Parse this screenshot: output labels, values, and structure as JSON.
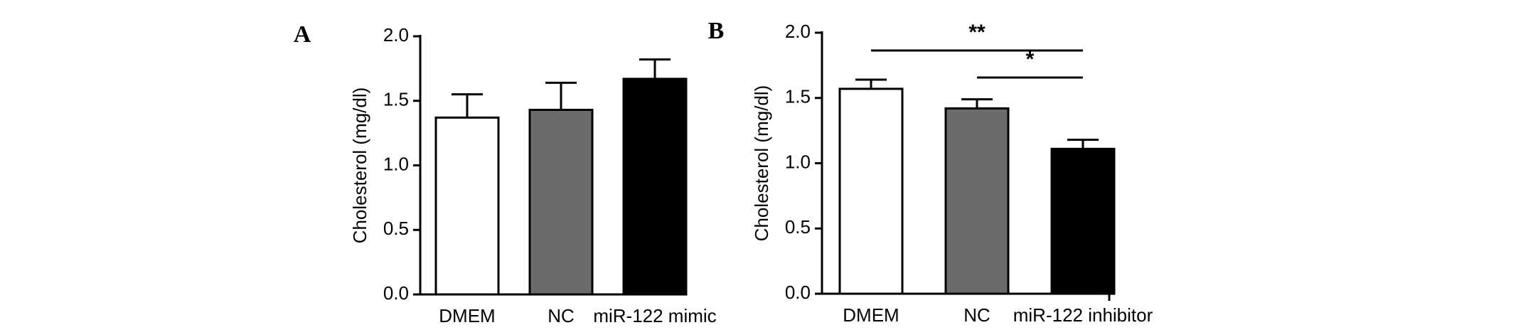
{
  "chart_data": [
    {
      "type": "bar",
      "panel": "A",
      "ylabel": "Cholesterol (mg/dl)",
      "categories": [
        "DMEM",
        "NC",
        "miR-122 mimic"
      ],
      "values": [
        1.37,
        1.43,
        1.67
      ],
      "errors": [
        0.18,
        0.21,
        0.15
      ],
      "colors": [
        "#ffffff",
        "#6b6b6b",
        "#000000"
      ],
      "ylim": [
        0,
        2
      ],
      "yticks": [
        {
          "value": 0,
          "label": "0.0"
        },
        0.5,
        {
          "value": 1,
          "label": "1.0"
        },
        1.5,
        {
          "value": 2,
          "label": "2.0"
        }
      ]
    },
    {
      "type": "bar",
      "panel": "B",
      "ylabel": "Cholesterol (mg/dl)",
      "categories": [
        "DMEM",
        "NC",
        "miR-122 inhibitor"
      ],
      "values": [
        1.57,
        1.42,
        1.11
      ],
      "errors": [
        0.07,
        0.07,
        0.07
      ],
      "colors": [
        "#ffffff",
        "#6b6b6b",
        "#000000"
      ],
      "ylim": [
        0,
        2
      ],
      "yticks": [
        {
          "value": 0,
          "label": "0.0"
        },
        0.5,
        {
          "value": 1,
          "label": "1.0"
        },
        1.5,
        {
          "value": 2,
          "label": "2.0"
        }
      ],
      "annotations": [
        {
          "text": "**",
          "from": 0,
          "to": 2
        },
        {
          "text": "*",
          "from": 1,
          "to": 2
        }
      ]
    }
  ]
}
